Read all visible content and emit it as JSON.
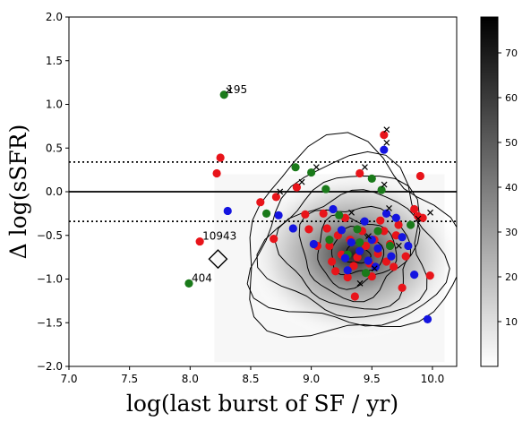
{
  "chart_data": {
    "type": "scatter",
    "xlabel": "log(last burst of SF / yr)",
    "ylabel": "Δ log(sSFR)",
    "xlim": [
      7.0,
      10.2
    ],
    "ylim": [
      -2.0,
      2.0
    ],
    "x_ticks": [
      "7.0",
      "7.5",
      "8.0",
      "8.5",
      "9.0",
      "9.5",
      "10.0"
    ],
    "y_ticks": [
      "−2.0",
      "−1.5",
      "−1.0",
      "−0.5",
      "0.0",
      "0.5",
      "1.0",
      "1.5",
      "2.0"
    ],
    "colorbar": {
      "range": [
        0,
        78
      ],
      "ticks": [
        "10",
        "20",
        "30",
        "40",
        "50",
        "60",
        "70"
      ],
      "colormap": "grays"
    },
    "reference_lines": [
      {
        "y": 0.0,
        "style": "solid"
      },
      {
        "y": 0.34,
        "style": "dotted"
      },
      {
        "y": -0.34,
        "style": "dotted"
      }
    ],
    "density_center": [
      9.35,
      -0.72
    ],
    "contour_levels": 8,
    "colors": {
      "red": "#e8141a",
      "green": "#1a7a1a",
      "blue": "#1414e0"
    },
    "series": [
      {
        "color": "red",
        "points": [
          [
            8.25,
            0.39
          ],
          [
            8.22,
            0.21
          ],
          [
            8.08,
            -0.57
          ],
          [
            8.58,
            -0.12
          ],
          [
            8.69,
            -0.54
          ],
          [
            8.71,
            -0.06
          ],
          [
            8.88,
            0.05
          ],
          [
            8.95,
            -0.26
          ],
          [
            8.98,
            -0.43
          ],
          [
            9.05,
            -0.62
          ],
          [
            9.1,
            -0.25
          ],
          [
            9.13,
            -0.42
          ],
          [
            9.15,
            -0.62
          ],
          [
            9.17,
            -0.8
          ],
          [
            9.2,
            -0.91
          ],
          [
            9.22,
            -0.5
          ],
          [
            9.25,
            -0.72
          ],
          [
            9.28,
            -0.3
          ],
          [
            9.3,
            -0.98
          ],
          [
            9.32,
            -0.55
          ],
          [
            9.35,
            -0.85
          ],
          [
            9.38,
            -0.75
          ],
          [
            9.4,
            0.21
          ],
          [
            9.42,
            -0.45
          ],
          [
            9.45,
            -0.62
          ],
          [
            9.48,
            -0.82
          ],
          [
            9.5,
            -0.97
          ],
          [
            9.52,
            -0.55
          ],
          [
            9.55,
            -0.71
          ],
          [
            9.57,
            -0.33
          ],
          [
            9.6,
            0.65
          ],
          [
            9.6,
            -0.45
          ],
          [
            9.62,
            -0.8
          ],
          [
            9.65,
            -0.6
          ],
          [
            9.68,
            -0.86
          ],
          [
            9.7,
            -0.5
          ],
          [
            9.72,
            -0.38
          ],
          [
            9.75,
            -1.1
          ],
          [
            9.78,
            -0.74
          ],
          [
            9.85,
            -0.2
          ],
          [
            9.9,
            0.18
          ],
          [
            9.92,
            -0.3
          ],
          [
            9.88,
            -0.28
          ],
          [
            9.98,
            -0.96
          ],
          [
            9.36,
            -1.2
          ]
        ]
      },
      {
        "color": "green",
        "points": [
          [
            8.28,
            1.11
          ],
          [
            7.99,
            -1.05
          ],
          [
            8.63,
            -0.25
          ],
          [
            8.87,
            0.28
          ],
          [
            9.0,
            0.22
          ],
          [
            9.12,
            0.03
          ],
          [
            9.23,
            -0.27
          ],
          [
            9.38,
            -0.43
          ],
          [
            9.5,
            0.15
          ],
          [
            9.58,
            0.02
          ],
          [
            9.15,
            -0.55
          ],
          [
            9.3,
            -0.72
          ],
          [
            9.45,
            -0.93
          ],
          [
            9.65,
            -0.62
          ],
          [
            9.82,
            -0.38
          ],
          [
            9.55,
            -0.45
          ],
          [
            9.4,
            -0.58
          ]
        ]
      },
      {
        "color": "blue",
        "points": [
          [
            8.31,
            -0.22
          ],
          [
            8.73,
            -0.27
          ],
          [
            8.85,
            -0.42
          ],
          [
            9.02,
            -0.6
          ],
          [
            9.18,
            -0.2
          ],
          [
            9.25,
            -0.44
          ],
          [
            9.28,
            -0.76
          ],
          [
            9.3,
            -0.9
          ],
          [
            9.33,
            -0.58
          ],
          [
            9.4,
            -0.68
          ],
          [
            9.44,
            -0.34
          ],
          [
            9.47,
            -0.79
          ],
          [
            9.5,
            -0.55
          ],
          [
            9.53,
            -0.86
          ],
          [
            9.55,
            -0.65
          ],
          [
            9.6,
            0.48
          ],
          [
            9.62,
            -0.25
          ],
          [
            9.66,
            -0.74
          ],
          [
            9.7,
            -0.3
          ],
          [
            9.75,
            -0.52
          ],
          [
            9.8,
            -0.62
          ],
          [
            9.85,
            -0.95
          ],
          [
            9.96,
            -1.46
          ]
        ]
      }
    ],
    "x_markers": [
      [
        9.6,
        0.67
      ],
      [
        9.6,
        0.52
      ],
      [
        9.42,
        0.24
      ],
      [
        8.3,
        1.12
      ],
      [
        8.9,
        0.07
      ],
      [
        8.72,
        -0.04
      ],
      [
        9.02,
        0.24
      ],
      [
        9.58,
        0.04
      ],
      [
        9.62,
        -0.23
      ],
      [
        9.31,
        -0.28
      ],
      [
        9.96,
        -0.28
      ],
      [
        9.45,
        -0.55
      ],
      [
        9.38,
        -1.09
      ],
      [
        9.5,
        -0.92
      ],
      [
        9.7,
        -0.66
      ],
      [
        9.86,
        -0.35
      ]
    ],
    "open_diamond": [
      8.23,
      -0.77
    ],
    "annotations": [
      {
        "text": "195",
        "x": 8.28,
        "y": 1.11
      },
      {
        "text": "10943",
        "x": 8.08,
        "y": -0.57
      },
      {
        "text": "404",
        "x": 7.99,
        "y": -1.05
      }
    ]
  }
}
